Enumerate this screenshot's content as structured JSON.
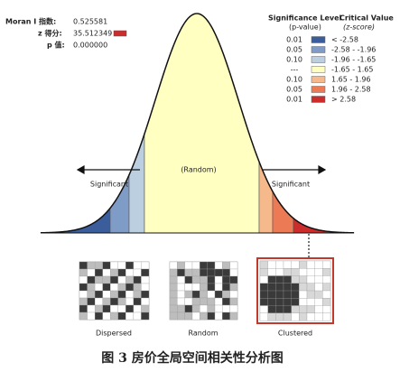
{
  "stats": [
    {
      "label": "Moran I 指数:",
      "value": "0.525581"
    },
    {
      "label": "z 得分:",
      "value": "35.512349"
    },
    {
      "label": "p 值:",
      "value": "0.000000"
    }
  ],
  "legend": {
    "significance_title": "Significance Level",
    "significance_sub": "(p-value)",
    "critical_title": "Critical Value",
    "critical_sub": "(z-score)",
    "rows": [
      {
        "p": "0.01",
        "z": "< -2.58",
        "color": "#3b5d9c"
      },
      {
        "p": "0.05",
        "z": "-2.58 - -1.96",
        "color": "#7f9cc6"
      },
      {
        "p": "0.10",
        "z": "-1.96 - -1.65",
        "color": "#bccfe0"
      },
      {
        "p": "---",
        "z": "-1.65 - 1.65",
        "color": "#ffffc2"
      },
      {
        "p": "0.10",
        "z": "1.65 - 1.96",
        "color": "#f6b98c"
      },
      {
        "p": "0.05",
        "z": "1.96 - 2.58",
        "color": "#ec7a55"
      },
      {
        "p": "0.01",
        "z": "> 2.58",
        "color": "#cc2c2c"
      }
    ]
  },
  "curve": {
    "left_label": "Significant",
    "center_label": "(Random)",
    "right_label": "Significant"
  },
  "maps": [
    "Dispersed",
    "Random",
    "Clustered"
  ],
  "caption": "图 3 房价全局空间相关性分析图"
}
